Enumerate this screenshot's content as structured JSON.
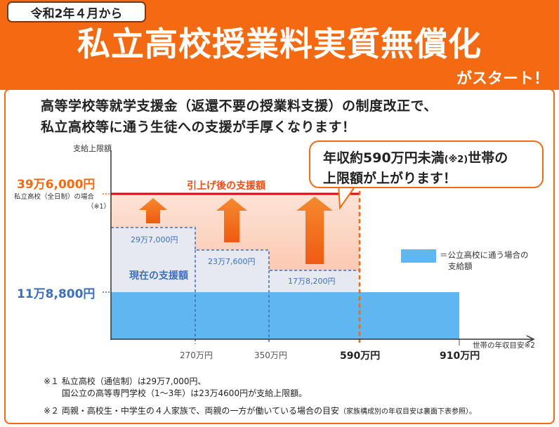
{
  "header": {
    "date_tab": "令和2年４月から",
    "title": "私立高校授業料実質無償化",
    "subtitle": "がスタート！"
  },
  "intro": {
    "line1": "高等学校等就学支援金（返還不要の授業料支援）の制度改正で、",
    "line2": "私立高校等に通う生徒への支援が手厚くなります！"
  },
  "callout": {
    "line1_a": "年収約590万円未満",
    "line1_note": "(※2)",
    "line1_b": "世帯の",
    "line2": "上限額が上がります！"
  },
  "chart_data": {
    "type": "bar",
    "ylabel": "支給上限額",
    "xlabel": "世帯の年収目安※2",
    "x_ticks": [
      "270万円",
      "350万円",
      "590万円",
      "910万円"
    ],
    "new_limit": {
      "value": "39万6,000円",
      "note_line1": "私立高校（全日制）の場合",
      "note_line2": "（※1）",
      "label": "引上げ後の支援額",
      "applies_below": "590万円"
    },
    "current_limits": [
      {
        "range": "〜270万円",
        "value": "29万7,000円"
      },
      {
        "range": "270万円〜350万円",
        "value": "23万7,600円"
      },
      {
        "range": "350万円〜590万円",
        "value": "17万8,200円"
      }
    ],
    "current_label": "現在の支援額",
    "public_amount": {
      "value": "11万8,800円",
      "applies_below": "910万円"
    },
    "legend": {
      "marker": "＝",
      "line1": "公立高校に通う場合の",
      "line2": "支給額",
      "color": "#5fb6f0"
    },
    "colors": {
      "orange": "#f46a12",
      "red_line": "#e60012",
      "blue": "#5fb6f0",
      "dash_blue": "#3e6fb9",
      "gray_fill": "#e6e9ef"
    }
  },
  "notes": {
    "n1_line1": "※１ 私立高校（通信制）は29万7,000円、",
    "n1_line2": "国公立の高等専門学校（1〜3年）は23万4600円が支給上限額。",
    "n2_main": "※２ 両親・高校生・中学生の４人家族で、両親の一方が働いている場合の目安",
    "n2_small": "（家族構成別の年収目安は裏面下表参照）。"
  }
}
